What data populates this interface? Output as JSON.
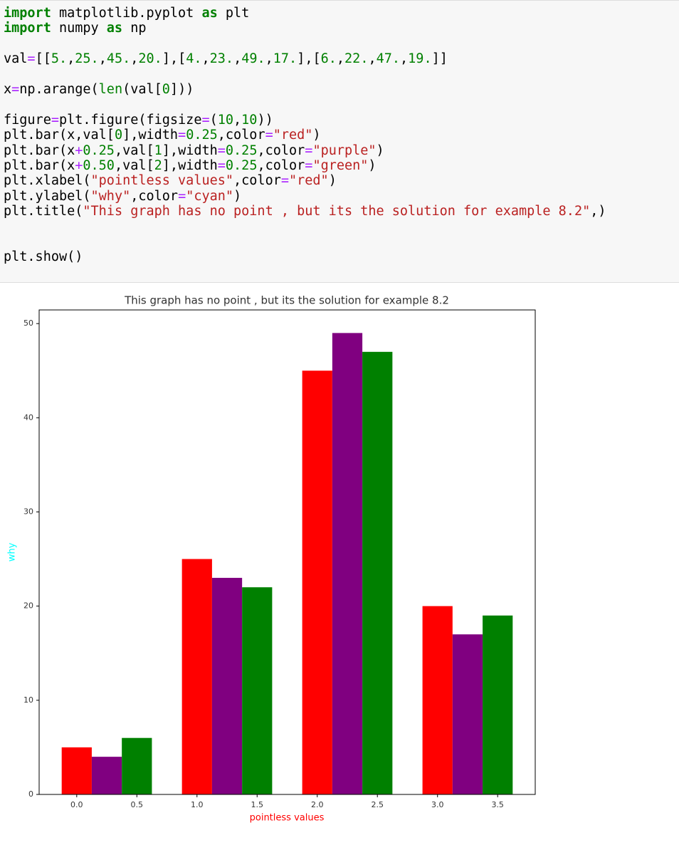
{
  "code": {
    "blocks": [
      [
        [
          [
            "import",
            "kw"
          ],
          [
            " matplotlib.pyplot ",
            "p"
          ],
          [
            "as",
            "kw"
          ],
          [
            " plt",
            "p"
          ]
        ],
        [
          [
            "import",
            "kw"
          ],
          [
            " numpy ",
            "p"
          ],
          [
            "as",
            "kw"
          ],
          [
            " np",
            "p"
          ]
        ]
      ],
      [
        [
          [
            "val",
            "p"
          ],
          [
            "=",
            "o"
          ],
          [
            "[[",
            "p"
          ],
          [
            "5.",
            "n"
          ],
          [
            ",",
            "p"
          ],
          [
            "25.",
            "n"
          ],
          [
            ",",
            "p"
          ],
          [
            "45.",
            "n"
          ],
          [
            ",",
            "p"
          ],
          [
            "20.",
            "n"
          ],
          [
            "],[",
            "p"
          ],
          [
            "4.",
            "n"
          ],
          [
            ",",
            "p"
          ],
          [
            "23.",
            "n"
          ],
          [
            ",",
            "p"
          ],
          [
            "49.",
            "n"
          ],
          [
            ",",
            "p"
          ],
          [
            "17.",
            "n"
          ],
          [
            "],[",
            "p"
          ],
          [
            "6.",
            "n"
          ],
          [
            ",",
            "p"
          ],
          [
            "22.",
            "n"
          ],
          [
            ",",
            "p"
          ],
          [
            "47.",
            "n"
          ],
          [
            ",",
            "p"
          ],
          [
            "19.",
            "n"
          ],
          [
            "]]",
            "p"
          ]
        ]
      ],
      [
        [
          [
            "x",
            "p"
          ],
          [
            "=",
            "o"
          ],
          [
            "np.arange(",
            "p"
          ],
          [
            "len",
            "n"
          ],
          [
            "(val[",
            "p"
          ],
          [
            "0",
            "n"
          ],
          [
            "]))",
            "p"
          ]
        ]
      ],
      [
        [
          [
            "figure",
            "p"
          ],
          [
            "=",
            "o"
          ],
          [
            "plt.figure(figsize",
            "p"
          ],
          [
            "=",
            "o"
          ],
          [
            "(",
            "p"
          ],
          [
            "10",
            "n"
          ],
          [
            ",",
            "p"
          ],
          [
            "10",
            "n"
          ],
          [
            "))",
            "p"
          ]
        ],
        [
          [
            "plt.bar(x,val[",
            "p"
          ],
          [
            "0",
            "n"
          ],
          [
            "],width",
            "p"
          ],
          [
            "=",
            "o"
          ],
          [
            "0.25",
            "n"
          ],
          [
            ",color",
            "p"
          ],
          [
            "=",
            "o"
          ],
          [
            "\"red\"",
            "s"
          ],
          [
            ")",
            "p"
          ]
        ],
        [
          [
            "plt.bar(x",
            "p"
          ],
          [
            "+",
            "o"
          ],
          [
            "0.25",
            "n"
          ],
          [
            ",val[",
            "p"
          ],
          [
            "1",
            "n"
          ],
          [
            "],width",
            "p"
          ],
          [
            "=",
            "o"
          ],
          [
            "0.25",
            "n"
          ],
          [
            ",color",
            "p"
          ],
          [
            "=",
            "o"
          ],
          [
            "\"purple\"",
            "s"
          ],
          [
            ")",
            "p"
          ]
        ],
        [
          [
            "plt.bar(x",
            "p"
          ],
          [
            "+",
            "o"
          ],
          [
            "0.50",
            "n"
          ],
          [
            ",val[",
            "p"
          ],
          [
            "2",
            "n"
          ],
          [
            "],width",
            "p"
          ],
          [
            "=",
            "o"
          ],
          [
            "0.25",
            "n"
          ],
          [
            ",color",
            "p"
          ],
          [
            "=",
            "o"
          ],
          [
            "\"green\"",
            "s"
          ],
          [
            ")",
            "p"
          ]
        ],
        [
          [
            "plt.xlabel(",
            "p"
          ],
          [
            "\"pointless values\"",
            "s"
          ],
          [
            ",color",
            "p"
          ],
          [
            "=",
            "o"
          ],
          [
            "\"red\"",
            "s"
          ],
          [
            ")",
            "p"
          ]
        ],
        [
          [
            "plt.ylabel(",
            "p"
          ],
          [
            "\"why\"",
            "s"
          ],
          [
            ",color",
            "p"
          ],
          [
            "=",
            "o"
          ],
          [
            "\"cyan\"",
            "s"
          ],
          [
            ")",
            "p"
          ]
        ],
        [
          [
            "plt.title(",
            "p"
          ],
          [
            "\"This graph has no point , but its the solution for example 8.2\"",
            "s"
          ],
          [
            ",)",
            "p"
          ]
        ]
      ],
      [
        [
          [
            "plt.show()",
            "p"
          ]
        ]
      ]
    ]
  },
  "chart_data": {
    "type": "bar",
    "title": "This graph has no point , but its the solution for example 8.2",
    "x_label": "pointless values",
    "x_label_color": "red",
    "y_label": "why",
    "y_label_color": "cyan",
    "x": [
      0,
      1,
      2,
      3
    ],
    "bar_width": 0.25,
    "series": [
      {
        "color": "red",
        "x_offset": 0,
        "values": [
          5,
          25,
          45,
          20
        ]
      },
      {
        "color": "purple",
        "x_offset": 0.25,
        "values": [
          4,
          23,
          49,
          17
        ]
      },
      {
        "color": "green",
        "x_offset": 0.5,
        "values": [
          6,
          22,
          47,
          19
        ]
      }
    ],
    "xlim": [
      -0.3125,
      3.8125
    ],
    "xticks": [
      {
        "value": 0,
        "label": "0.0"
      },
      {
        "value": 0.5,
        "label": "0.5"
      },
      {
        "value": 1,
        "label": "1.0"
      },
      {
        "value": 1.5,
        "label": "1.5"
      },
      {
        "value": 2,
        "label": "2.0"
      },
      {
        "value": 2.5,
        "label": "2.5"
      },
      {
        "value": 3,
        "label": "3.0"
      },
      {
        "value": 3.5,
        "label": "3.5"
      }
    ],
    "ylim": [
      0,
      51.45
    ],
    "yticks": [
      0,
      10,
      20,
      30,
      40,
      50
    ],
    "grid": false
  }
}
